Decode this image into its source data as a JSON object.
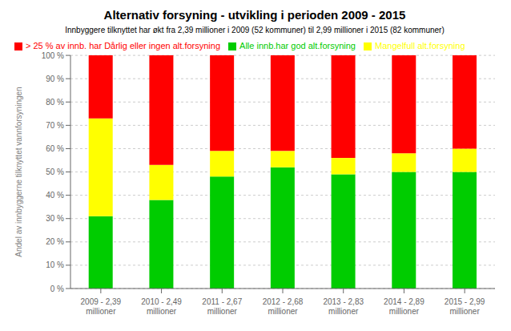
{
  "chart_data": {
    "type": "bar",
    "stacked": true,
    "title": "Alternativ forsyning - utvikling i perioden 2009 - 2015",
    "subtitle": "Innbyggere tilknyttet har økt fra 2,39 millioner i 2009 (52 kommuner) til 2,99 millioner i 2015 (82 kommuner)",
    "ylabel": "Andel av innbyggerne tilknyttet vannforsyningen",
    "categories": [
      "2009 - 2,39\nmillioner",
      "2010 - 2,49\nmillioner",
      "2011 - 2,67\nmillioner",
      "2012 - 2,68\nmillioner",
      "2013 - 2,83\nmillioner",
      "2014 - 2,89\nmillioner",
      "2015 - 2,99\nmillioner"
    ],
    "series": [
      {
        "name": "Alle innb.har god alt.forsyning",
        "color": "#00CC00",
        "values": [
          31,
          38,
          48,
          52,
          49,
          50,
          50
        ]
      },
      {
        "name": "Mangelfull alt.forsyning",
        "color": "#FFFF00",
        "values": [
          42,
          15,
          11,
          7,
          7,
          8,
          10
        ]
      },
      {
        "name": "> 25 % av innb. har Dårlig eller ingen alt.forsyning",
        "color": "#FF0000",
        "values": [
          27,
          47,
          41,
          41,
          44,
          42,
          40
        ]
      }
    ],
    "ylim": [
      0,
      100
    ],
    "yticks": [
      {
        "value": 0,
        "label": "0 %"
      },
      {
        "value": 10,
        "label": "10 %"
      },
      {
        "value": 20,
        "label": "20 %"
      },
      {
        "value": 30,
        "label": "30 %"
      },
      {
        "value": 40,
        "label": "40 %"
      },
      {
        "value": 50,
        "label": "50 %"
      },
      {
        "value": 60,
        "label": "60 %"
      },
      {
        "value": 70,
        "label": "70 %"
      },
      {
        "value": 80,
        "label": "80 %"
      },
      {
        "value": 90,
        "label": "90 %"
      },
      {
        "value": 100,
        "label": "100 %"
      }
    ],
    "grid": true,
    "legend": "upper left"
  }
}
